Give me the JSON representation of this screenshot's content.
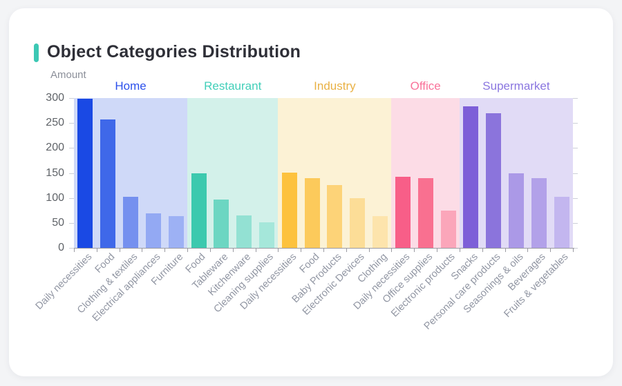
{
  "card": {
    "title": "Object Categories Distribution",
    "accent_color": "#3cc8b4"
  },
  "axis": {
    "line_color": "#9a9aa2",
    "y_tick_label_color": "#5f6368",
    "x_label_color": "#9196a3",
    "y_title_color": "#8b8f99"
  },
  "chart_data": {
    "type": "bar",
    "title": "Object Categories Distribution",
    "ylabel": "Amount",
    "xlabel": "",
    "ylim": [
      0,
      300
    ],
    "yticks": [
      0,
      50,
      100,
      150,
      200,
      250,
      300
    ],
    "grid": false,
    "legend_position": "none",
    "groups": [
      {
        "name": "Home",
        "label_color": "#2b50ec",
        "band_color": "#cfd9f8",
        "bars": [
          {
            "label": "Daily necessities",
            "value": 298,
            "color": "#1a49e4"
          },
          {
            "label": "Food",
            "value": 257,
            "color": "#3f68e9"
          },
          {
            "label": "Clothing & textiles",
            "value": 103,
            "color": "#7590ef"
          },
          {
            "label": "Electrical appliances",
            "value": 69,
            "color": "#93a9f3"
          },
          {
            "label": "Furniture",
            "value": 64,
            "color": "#9db1f4"
          }
        ]
      },
      {
        "name": "Restaurant",
        "label_color": "#41cfb9",
        "band_color": "#d3f1ea",
        "bars": [
          {
            "label": "Food",
            "value": 150,
            "color": "#3cc9ae"
          },
          {
            "label": "Tableware",
            "value": 97,
            "color": "#6cd6c2"
          },
          {
            "label": "Kitchenware",
            "value": 65,
            "color": "#93e1d3"
          },
          {
            "label": "Cleaning supplies",
            "value": 51,
            "color": "#a5e7da"
          }
        ]
      },
      {
        "name": "Industry",
        "label_color": "#e9b144",
        "band_color": "#fcf2d5",
        "bars": [
          {
            "label": "Daily necessities",
            "value": 151,
            "color": "#fdc23e"
          },
          {
            "label": "Food",
            "value": 139,
            "color": "#fcca5b"
          },
          {
            "label": "Baby Products",
            "value": 126,
            "color": "#fdd378"
          },
          {
            "label": "Electronic Devices",
            "value": 100,
            "color": "#fcdd97"
          },
          {
            "label": "Clothing",
            "value": 64,
            "color": "#fde4ac"
          }
        ]
      },
      {
        "name": "Office",
        "label_color": "#f9729a",
        "band_color": "#fcdce6",
        "bars": [
          {
            "label": "Daily necessities",
            "value": 143,
            "color": "#f85e88"
          },
          {
            "label": "Office supplies",
            "value": 139,
            "color": "#f97090"
          },
          {
            "label": "Electronic products",
            "value": 75,
            "color": "#fba6ba"
          }
        ]
      },
      {
        "name": "Supermarket",
        "label_color": "#8a76e0",
        "band_color": "#e1dbf6",
        "bars": [
          {
            "label": "Snacks",
            "value": 283,
            "color": "#7d5fd8"
          },
          {
            "label": "Personal care products",
            "value": 270,
            "color": "#8b74dc"
          },
          {
            "label": "Seasonings & oils",
            "value": 149,
            "color": "#ab99e7"
          },
          {
            "label": "Beverages",
            "value": 140,
            "color": "#b2a1e9"
          },
          {
            "label": "Fruits & vegetables",
            "value": 102,
            "color": "#c3b6ef"
          }
        ]
      }
    ]
  }
}
